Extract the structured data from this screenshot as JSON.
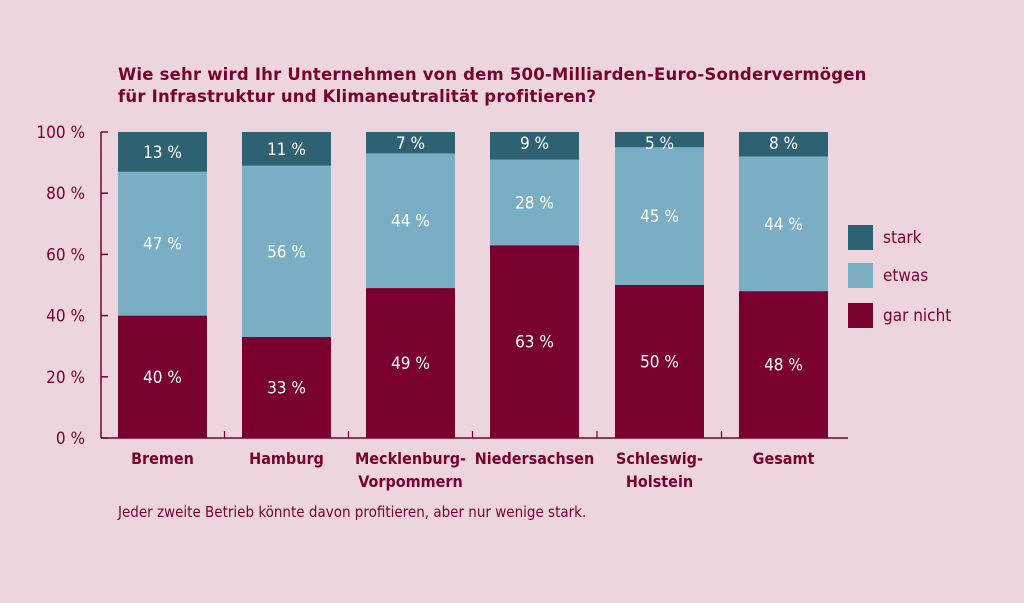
{
  "chart_data": {
    "type": "bar",
    "stacked": true,
    "title_lines": [
      "Wie sehr wird Ihr Unternehmen von dem 500-Milliarden-Euro-Sondervermögen",
      "für Infrastruktur und Klimaneutralität profitieren?"
    ],
    "categories": [
      [
        "Bremen"
      ],
      [
        "Hamburg"
      ],
      [
        "Mecklenburg-",
        "Vorpommern"
      ],
      [
        "Niedersachsen"
      ],
      [
        "Schleswig-",
        "Holstein"
      ],
      [
        "Gesamt"
      ]
    ],
    "series": [
      {
        "name": "gar nicht",
        "color": "#7a0030",
        "values": [
          40,
          33,
          49,
          63,
          50,
          48
        ]
      },
      {
        "name": "etwas",
        "color": "#7aaec4",
        "values": [
          47,
          56,
          44,
          28,
          45,
          44
        ]
      },
      {
        "name": "stark",
        "color": "#2e6273",
        "values": [
          13,
          11,
          7,
          9,
          5,
          8
        ]
      }
    ],
    "legend_order": [
      "stark",
      "etwas",
      "gar nicht"
    ],
    "yticks": [
      "0 %",
      "20 %",
      "40 %",
      "60 %",
      "80 %",
      "100 %"
    ],
    "ylim": [
      0,
      100
    ],
    "value_suffix": " %",
    "note": "Jeder zweite Betrieb könnte davon profitieren, aber nur wenige stark."
  }
}
